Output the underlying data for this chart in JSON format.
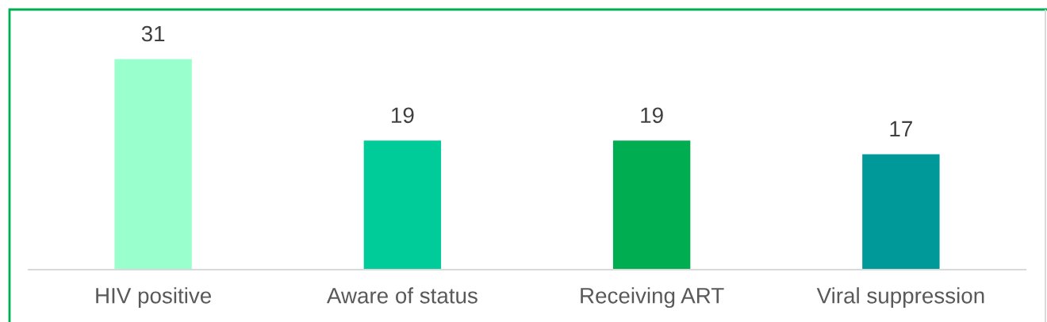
{
  "chart_data": {
    "type": "bar",
    "categories": [
      "HIV positive",
      "Aware of status",
      "Receiving ART",
      "Viral suppression"
    ],
    "values": [
      31,
      19,
      19,
      17
    ],
    "colors": [
      "#99ffcc",
      "#00cc99",
      "#00ad50",
      "#009999"
    ],
    "data_labels": true,
    "grid": false,
    "legend": false,
    "tick_labels": "x"
  }
}
